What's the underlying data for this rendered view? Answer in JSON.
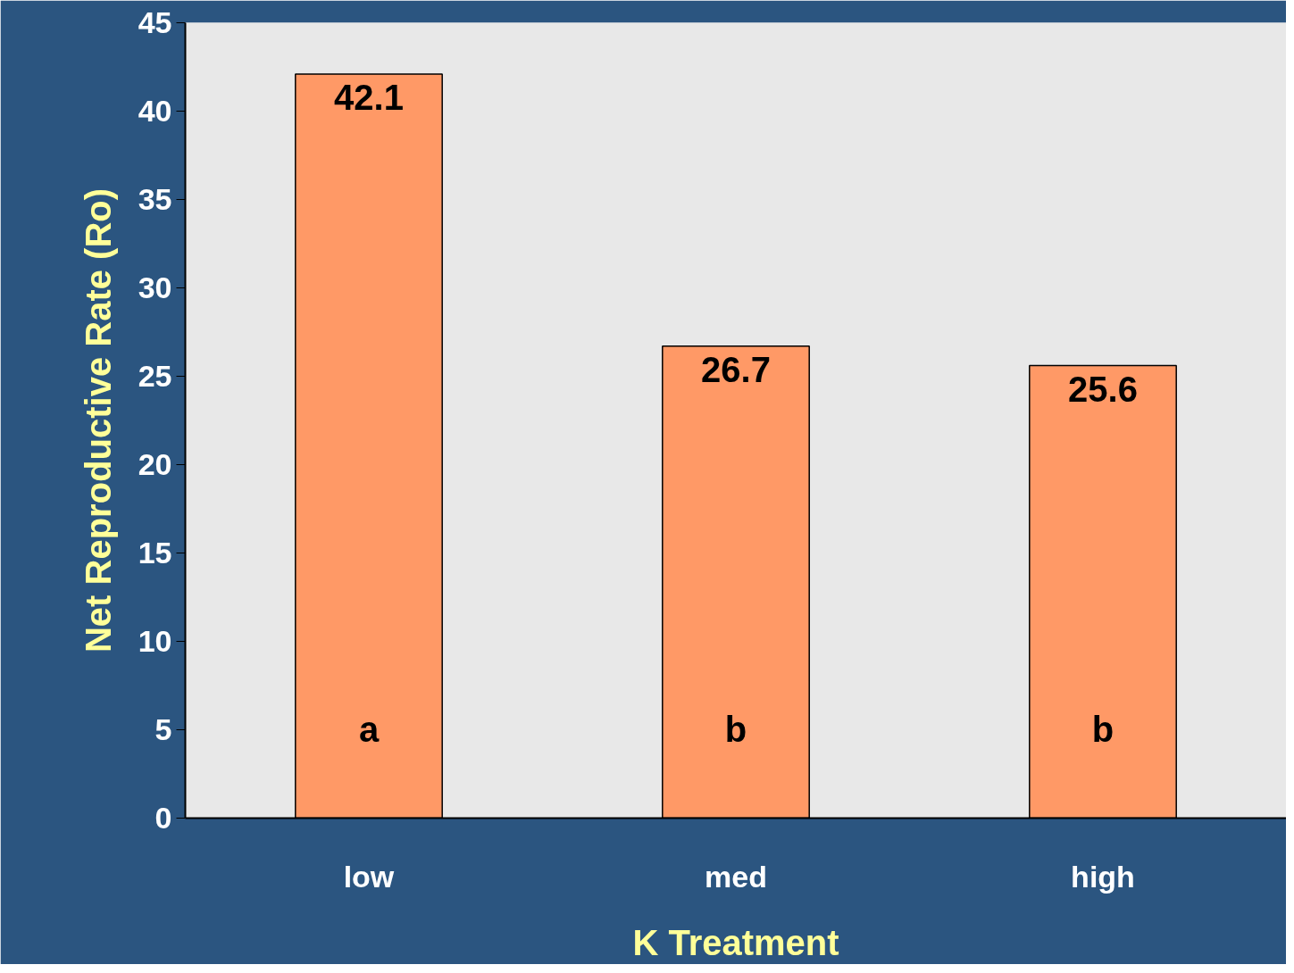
{
  "chart_data": {
    "type": "bar",
    "xlabel": "K Treatment",
    "ylabel": "Net Reproductive Rate (Ro)",
    "categories": [
      "low",
      "med",
      "high"
    ],
    "values": [
      42.1,
      26.7,
      25.6
    ],
    "color": "#ff9966",
    "ylim": [
      0,
      45
    ],
    "yticks": [
      0,
      5,
      10,
      15,
      20,
      25,
      30,
      35,
      40,
      45
    ],
    "data_labels": true,
    "grid": false,
    "annotations": [
      "a",
      "b",
      "b"
    ]
  }
}
